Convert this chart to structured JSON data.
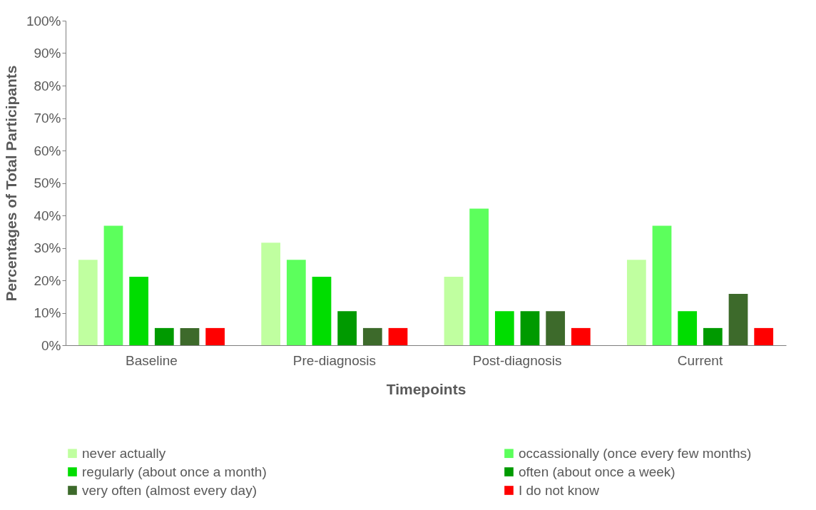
{
  "chart_data": {
    "type": "bar",
    "xlabel": "Timepoints",
    "ylabel": "Percentages of Total Participants",
    "categories": [
      "Baseline",
      "Pre-diagnosis",
      "Post-diagnosis",
      "Current"
    ],
    "series": [
      {
        "name": "never actually",
        "color": "#c0ffa0",
        "values": [
          26.3,
          31.6,
          21.1,
          26.3
        ]
      },
      {
        "name": "occassionally (once every few months)",
        "color": "#5cff5c",
        "values": [
          36.8,
          26.3,
          42.1,
          36.8
        ]
      },
      {
        "name": "regularly (about once a month)",
        "color": "#00dd00",
        "values": [
          21.1,
          21.1,
          10.5,
          10.5
        ]
      },
      {
        "name": "often (about once a week)",
        "color": "#009a00",
        "values": [
          5.3,
          10.5,
          10.5,
          5.3
        ]
      },
      {
        "name": "very often (almost every day)",
        "color": "#3d6a2b",
        "values": [
          5.3,
          5.3,
          10.5,
          15.8
        ]
      },
      {
        "name": "I do not know",
        "color": "#ff0000",
        "values": [
          5.3,
          5.3,
          5.3,
          5.3
        ]
      }
    ],
    "ylim": [
      0,
      100
    ],
    "yticks": [
      {
        "value": 0,
        "label": "0%"
      },
      {
        "value": 10,
        "label": "10%"
      },
      {
        "value": 20,
        "label": "20%"
      },
      {
        "value": 30,
        "label": "30%"
      },
      {
        "value": 40,
        "label": "40%"
      },
      {
        "value": 50,
        "label": "50%"
      },
      {
        "value": 60,
        "label": "60%"
      },
      {
        "value": 70,
        "label": "70%"
      },
      {
        "value": 80,
        "label": "80%"
      },
      {
        "value": 90,
        "label": "90%"
      },
      {
        "value": 100,
        "label": "100%"
      }
    ],
    "grid": false,
    "legend": "bottom"
  }
}
